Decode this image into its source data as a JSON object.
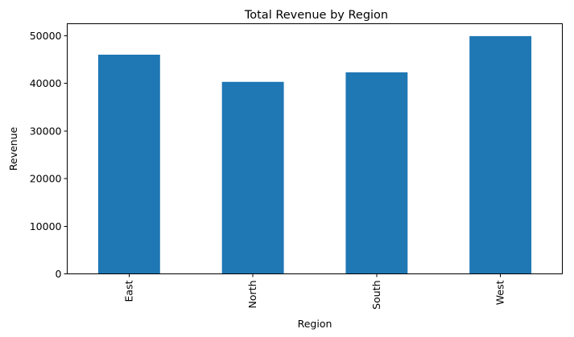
{
  "chart_data": {
    "type": "bar",
    "title": "Total Revenue by Region",
    "xlabel": "Region",
    "ylabel": "Revenue",
    "categories": [
      "East",
      "North",
      "South",
      "West"
    ],
    "values": [
      46000,
      40300,
      42300,
      49900
    ],
    "ylim": [
      0,
      52500
    ],
    "yticks": [
      0,
      10000,
      20000,
      30000,
      40000,
      50000
    ],
    "grid": false,
    "legend": "none",
    "bar_color": "#1f77b4"
  }
}
